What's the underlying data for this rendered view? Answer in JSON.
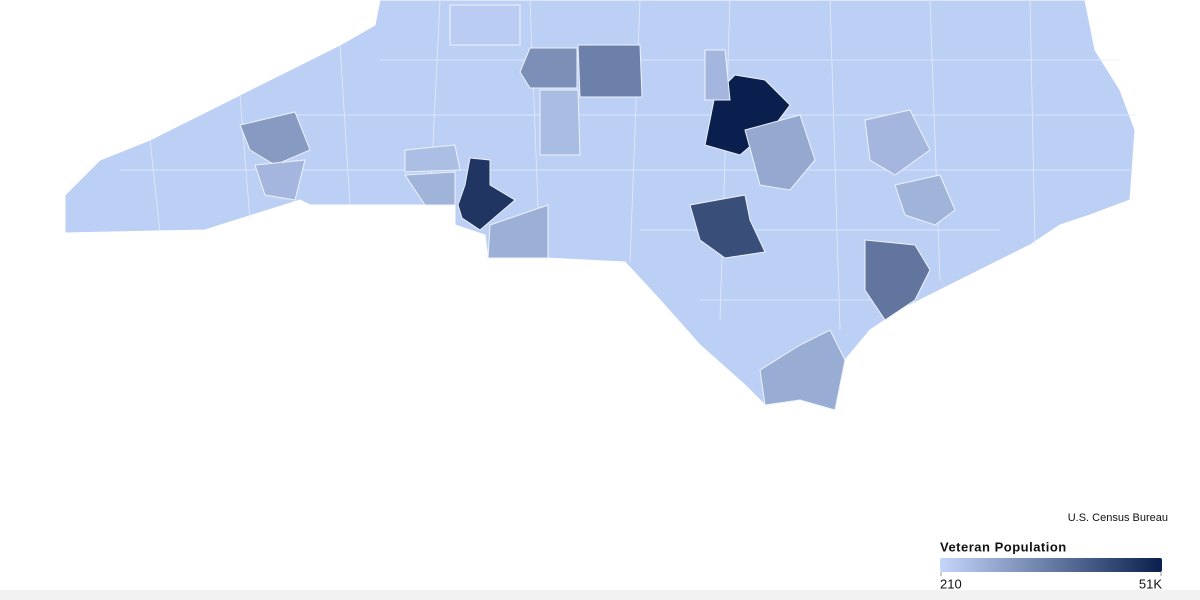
{
  "map": {
    "source": "U.S. Census Bureau",
    "legend": {
      "title": "Veteran Population",
      "min": 210,
      "max": {
        "value": 51000,
        "label": "51K"
      },
      "colors": [
        "#c4d6fb",
        "#0a1f4d"
      ]
    },
    "values": [
      51000,
      45000,
      38000,
      27000,
      24000,
      20000,
      17000,
      12000,
      13000,
      10000,
      11000,
      10000,
      9000,
      9000,
      7500,
      9000,
      7000,
      3000
    ]
  }
}
